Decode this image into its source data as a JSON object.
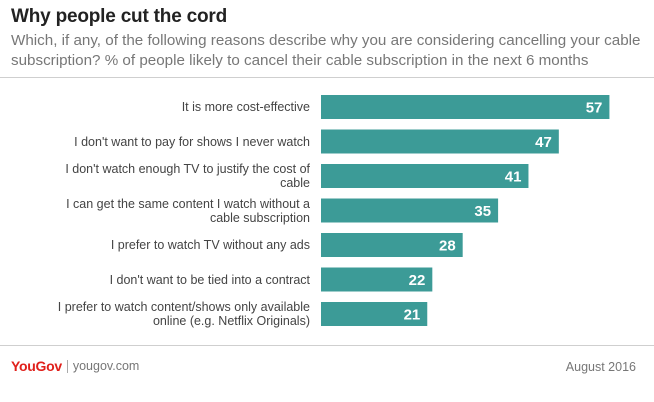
{
  "header": {
    "title": "Why people cut the cord",
    "subtitle": "Which, if any, of the following reasons describe why you are considering cancelling your cable subscription? % of people likely to cancel their cable subscription in the next 6 months"
  },
  "chart_data": {
    "type": "bar",
    "orientation": "horizontal",
    "categories": [
      "It is more cost-effective",
      "I don't want to pay for shows I never watch",
      "I don't watch enough TV to justify the cost of cable",
      "I can get the same content I watch without a cable subscription",
      "I prefer to watch TV without any ads",
      "I don't want to be tied into a contract",
      "I prefer to watch content/shows only available online (e.g. Netflix Originals)"
    ],
    "values": [
      57,
      47,
      41,
      35,
      28,
      22,
      21
    ],
    "bar_color": "#3c9b97",
    "grid": false,
    "legend": "none"
  },
  "footer": {
    "logo": "YouGov",
    "site": "yougov.com",
    "date": "August 2016"
  }
}
